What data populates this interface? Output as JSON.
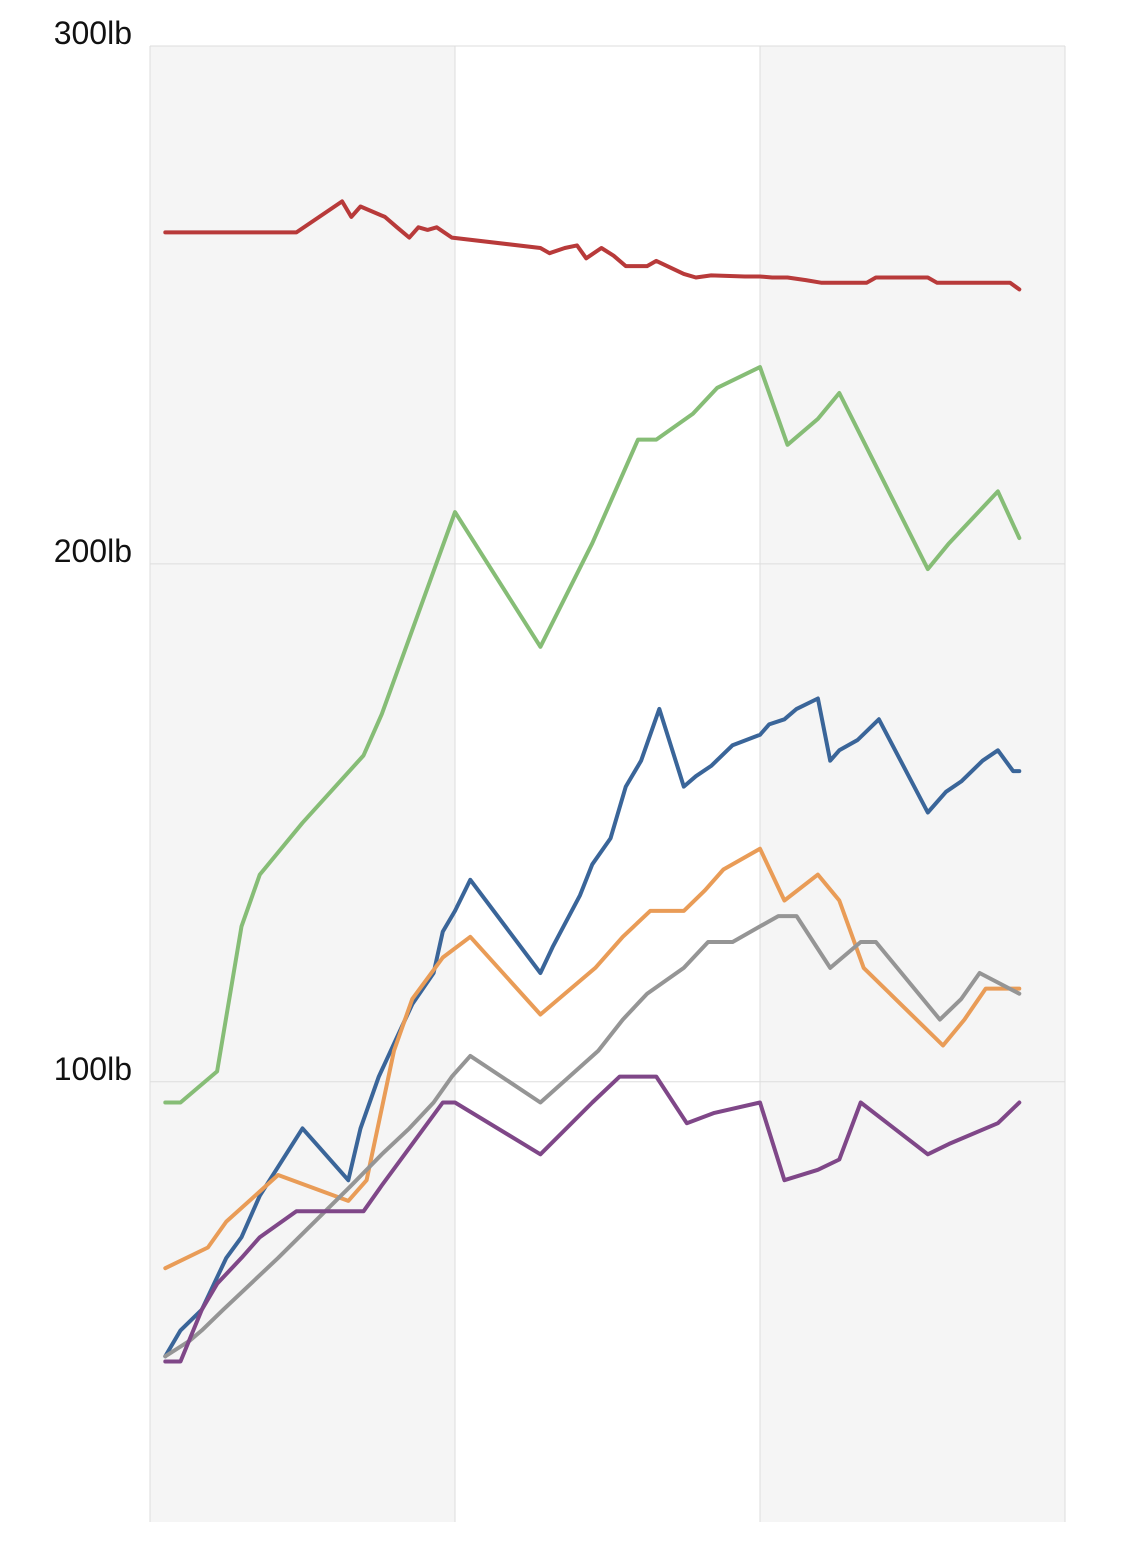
{
  "chart_data": {
    "type": "line",
    "title": "",
    "xlabel": "",
    "ylabel": "",
    "ylim": [
      15,
      300
    ],
    "y_ticks": [
      {
        "value": 300,
        "label": "300lb"
      },
      {
        "value": 200,
        "label": "200lb"
      },
      {
        "value": 100,
        "label": "100lb"
      }
    ],
    "grid": true,
    "x_bands": 3,
    "colors": {
      "band_shade": "#f5f5f5",
      "gridline": "#dddddd"
    },
    "series": [
      {
        "color": "#b83a3a",
        "points": [
          [
            0.5,
            264
          ],
          [
            4.8,
            264
          ],
          [
            6.3,
            270
          ],
          [
            6.6,
            267
          ],
          [
            6.9,
            269
          ],
          [
            7.7,
            267
          ],
          [
            8.1,
            265
          ],
          [
            8.5,
            263
          ],
          [
            8.8,
            265
          ],
          [
            9.1,
            264.5
          ],
          [
            9.4,
            265
          ],
          [
            9.9,
            263
          ],
          [
            12.8,
            261
          ],
          [
            13.1,
            260
          ],
          [
            13.6,
            261
          ],
          [
            14,
            261.5
          ],
          [
            14.3,
            259
          ],
          [
            14.8,
            261
          ],
          [
            15.2,
            259.5
          ],
          [
            15.6,
            257.5
          ],
          [
            16.3,
            257.5
          ],
          [
            16.6,
            258.5
          ],
          [
            17.5,
            256
          ],
          [
            17.9,
            255.3
          ],
          [
            18.4,
            255.7
          ],
          [
            19.5,
            255.5
          ],
          [
            20.0,
            255.5
          ],
          [
            20.4,
            255.3
          ],
          [
            20.9,
            255.3
          ],
          [
            21.5,
            254.8
          ],
          [
            22.0,
            254.3
          ],
          [
            23.5,
            254.3
          ],
          [
            23.8,
            255.3
          ],
          [
            25.5,
            255.3
          ],
          [
            25.8,
            254.3
          ],
          [
            28.2,
            254.3
          ],
          [
            28.5,
            253
          ]
        ]
      },
      {
        "color": "#86bd76",
        "points": [
          [
            0.5,
            96
          ],
          [
            1,
            96
          ],
          [
            2.2,
            102
          ],
          [
            3,
            130
          ],
          [
            3.6,
            140
          ],
          [
            5,
            150
          ],
          [
            7,
            163
          ],
          [
            7.6,
            171
          ],
          [
            10,
            210
          ],
          [
            12.8,
            184
          ],
          [
            14.5,
            204
          ],
          [
            16,
            224
          ],
          [
            16.6,
            224
          ],
          [
            17.8,
            229
          ],
          [
            18.6,
            234
          ],
          [
            20,
            238
          ],
          [
            20.9,
            223
          ],
          [
            21.9,
            228
          ],
          [
            22.6,
            233
          ],
          [
            25.5,
            199
          ],
          [
            26.2,
            204
          ],
          [
            27.8,
            214
          ],
          [
            28.5,
            205
          ]
        ]
      },
      {
        "color": "#3a6599",
        "points": [
          [
            0.5,
            47
          ],
          [
            1,
            52
          ],
          [
            1.7,
            56
          ],
          [
            2.5,
            66
          ],
          [
            3,
            70
          ],
          [
            3.6,
            78
          ],
          [
            5,
            91
          ],
          [
            6.5,
            81
          ],
          [
            6.9,
            91
          ],
          [
            7.5,
            101
          ],
          [
            8.6,
            115
          ],
          [
            9.3,
            121
          ],
          [
            9.6,
            129
          ],
          [
            10,
            133
          ],
          [
            10.5,
            139
          ],
          [
            12.8,
            121
          ],
          [
            13.2,
            126
          ],
          [
            14.1,
            136
          ],
          [
            14.5,
            142
          ],
          [
            15.1,
            147
          ],
          [
            15.6,
            157
          ],
          [
            16.1,
            162
          ],
          [
            16.7,
            172
          ],
          [
            17.5,
            157
          ],
          [
            17.9,
            159
          ],
          [
            18.4,
            161
          ],
          [
            19.1,
            165
          ],
          [
            20,
            167
          ],
          [
            20.3,
            169
          ],
          [
            20.8,
            170
          ],
          [
            21.2,
            172
          ],
          [
            21.9,
            174
          ],
          [
            22.3,
            162
          ],
          [
            22.6,
            164
          ],
          [
            23.2,
            166
          ],
          [
            23.9,
            170
          ],
          [
            25.5,
            152
          ],
          [
            26.1,
            156
          ],
          [
            26.6,
            158
          ],
          [
            27.3,
            162
          ],
          [
            27.8,
            164
          ],
          [
            28.3,
            160
          ],
          [
            28.5,
            160
          ]
        ]
      },
      {
        "color": "#e99c57",
        "points": [
          [
            0.5,
            64
          ],
          [
            1.9,
            68
          ],
          [
            2.5,
            73
          ],
          [
            4.2,
            82
          ],
          [
            6.5,
            77
          ],
          [
            7.1,
            81
          ],
          [
            8.0,
            106
          ],
          [
            8.6,
            116
          ],
          [
            9.6,
            124
          ],
          [
            10.5,
            128
          ],
          [
            12.8,
            113
          ],
          [
            14.6,
            122
          ],
          [
            15.5,
            128
          ],
          [
            16.4,
            133
          ],
          [
            17.5,
            133
          ],
          [
            18.2,
            137
          ],
          [
            18.8,
            141
          ],
          [
            20,
            145
          ],
          [
            20.8,
            135
          ],
          [
            21.9,
            140
          ],
          [
            22.6,
            135
          ],
          [
            23.4,
            122
          ],
          [
            26.0,
            107
          ],
          [
            26.7,
            112
          ],
          [
            27.4,
            118
          ],
          [
            28.5,
            118
          ]
        ]
      },
      {
        "color": "#959595",
        "points": [
          [
            0.5,
            47
          ],
          [
            1.3,
            50
          ],
          [
            1.7,
            52
          ],
          [
            2.4,
            56
          ],
          [
            4.2,
            66
          ],
          [
            6.6,
            80
          ],
          [
            7.6,
            86
          ],
          [
            8.5,
            91
          ],
          [
            9.3,
            96
          ],
          [
            9.9,
            101
          ],
          [
            10.5,
            105
          ],
          [
            12.8,
            96
          ],
          [
            14.7,
            106
          ],
          [
            15.5,
            112
          ],
          [
            16.3,
            117
          ],
          [
            17.5,
            122
          ],
          [
            18.3,
            127
          ],
          [
            19.1,
            127
          ],
          [
            20,
            130
          ],
          [
            20.6,
            132
          ],
          [
            21.2,
            132
          ],
          [
            22.3,
            122
          ],
          [
            23.3,
            127
          ],
          [
            23.8,
            127
          ],
          [
            25.9,
            112
          ],
          [
            26.6,
            116
          ],
          [
            27.2,
            121
          ],
          [
            28.5,
            117
          ]
        ]
      },
      {
        "color": "#7f4788",
        "points": [
          [
            0.5,
            46
          ],
          [
            1,
            46
          ],
          [
            1.7,
            56
          ],
          [
            2.2,
            61
          ],
          [
            3,
            66
          ],
          [
            3.6,
            70
          ],
          [
            4.8,
            75
          ],
          [
            7,
            75
          ],
          [
            7.6,
            80
          ],
          [
            9.6,
            96
          ],
          [
            10,
            96
          ],
          [
            12.8,
            86
          ],
          [
            14.5,
            96
          ],
          [
            15.4,
            101
          ],
          [
            16.6,
            101
          ],
          [
            17.6,
            92
          ],
          [
            18.5,
            94
          ],
          [
            20,
            96
          ],
          [
            20.8,
            81
          ],
          [
            21.9,
            83
          ],
          [
            22.6,
            85
          ],
          [
            23.3,
            96
          ],
          [
            25.5,
            86
          ],
          [
            26.2,
            88
          ],
          [
            27.8,
            92
          ],
          [
            28.5,
            96
          ]
        ]
      }
    ]
  }
}
